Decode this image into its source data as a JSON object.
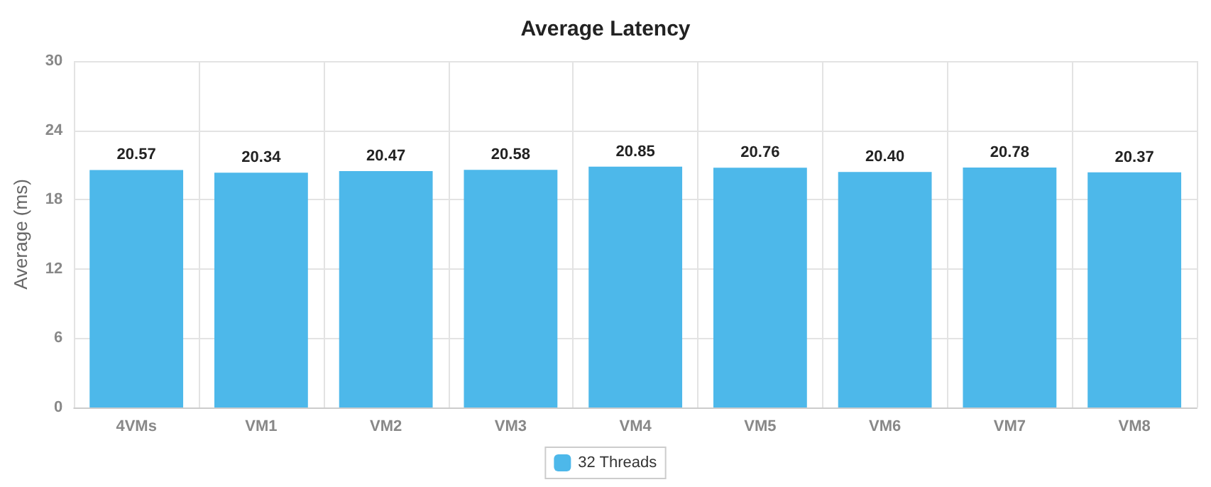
{
  "chart_data": {
    "type": "bar",
    "title": "Average Latency",
    "ylabel": "Average (ms)",
    "categories": [
      "4VMs",
      "VM1",
      "VM2",
      "VM3",
      "VM4",
      "VM5",
      "VM6",
      "VM7",
      "VM8"
    ],
    "series": [
      {
        "name": "32 Threads",
        "color": "#4db8ea",
        "values": [
          20.57,
          20.34,
          20.47,
          20.58,
          20.85,
          20.76,
          20.4,
          20.78,
          20.37
        ],
        "value_labels": [
          "20.57",
          "20.34",
          "20.47",
          "20.58",
          "20.85",
          "20.76",
          "20.40",
          "20.78",
          "20.37"
        ]
      }
    ],
    "ylim": [
      0,
      30
    ],
    "yticks": [
      0,
      6,
      12,
      18,
      24,
      30
    ],
    "grid": true,
    "legend": "bottom"
  }
}
